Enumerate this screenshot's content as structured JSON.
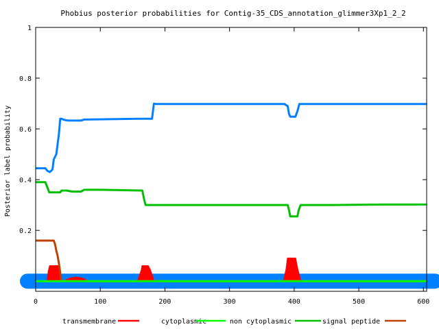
{
  "chart_data": {
    "type": "line",
    "title": "Phobius posterior probabilities for Contig-35_CDS_annotation_glimmer3Xp1_2_2",
    "xlabel": "",
    "ylabel": "Posterior label probability",
    "xlim": [
      0,
      605
    ],
    "ylim": [
      -0.04,
      1.0
    ],
    "x_ticks": [
      0,
      100,
      200,
      300,
      400,
      500,
      600
    ],
    "x_tick_labels": [
      "0",
      "100",
      "200",
      "300",
      "400",
      "500",
      "600"
    ],
    "y_ticks": [
      0.2,
      0.4,
      0.6,
      0.8,
      1.0
    ],
    "y_tick_labels": [
      "0.2",
      "0.4",
      "0.6",
      "0.8",
      "1"
    ],
    "grid": false,
    "legend_position": "bottom",
    "series": [
      {
        "name": "transmembrane",
        "color": "#ff0000",
        "style": "filled",
        "x": [
          0,
          18,
          20,
          22,
          34,
          36,
          38,
          45,
          50,
          55,
          60,
          65,
          70,
          75,
          80,
          85,
          158,
          164,
          165,
          174,
          177,
          183,
          384,
          388,
          390,
          402,
          405,
          410,
          605
        ],
        "y": [
          0,
          0,
          0.04,
          0.06,
          0.06,
          0.04,
          0,
          0,
          0.008,
          0.012,
          0.014,
          0.014,
          0.012,
          0.008,
          0,
          0,
          0,
          0.045,
          0.06,
          0.06,
          0.045,
          0,
          0,
          0.05,
          0.09,
          0.09,
          0.05,
          0,
          0
        ]
      },
      {
        "name": "cytoplasmic",
        "color": "#00ff00",
        "style": "line",
        "x": [
          0,
          605
        ],
        "y": [
          0,
          0
        ]
      },
      {
        "name": "non cytoplasmic",
        "color": "#00c000",
        "style": "line",
        "x": [
          0,
          15,
          18,
          21,
          38,
          40,
          48,
          56,
          70,
          75,
          100,
          165,
          168,
          170,
          390,
          392,
          394,
          405,
          407,
          410,
          460,
          540,
          605
        ],
        "y": [
          0.39,
          0.39,
          0.37,
          0.35,
          0.35,
          0.357,
          0.357,
          0.353,
          0.353,
          0.36,
          0.36,
          0.357,
          0.32,
          0.3,
          0.3,
          0.28,
          0.255,
          0.255,
          0.28,
          0.3,
          0.3,
          0.302,
          0.302
        ]
      },
      {
        "name": "signal peptide",
        "color": "#0080ff",
        "style": "line",
        "x": [
          0,
          15,
          18,
          22,
          26,
          28,
          32,
          36,
          38,
          40,
          44,
          50,
          70,
          75,
          160,
          172,
          180,
          183,
          186,
          385,
          390,
          392,
          394,
          402,
          405,
          408,
          605
        ],
        "y": [
          0.445,
          0.445,
          0.435,
          0.43,
          0.44,
          0.48,
          0.5,
          0.58,
          0.64,
          0.64,
          0.636,
          0.633,
          0.633,
          0.637,
          0.64,
          0.64,
          0.64,
          0.7,
          0.698,
          0.698,
          0.69,
          0.66,
          0.648,
          0.648,
          0.67,
          0.698,
          0.698
        ]
      },
      {
        "name": "signal peptide",
        "color": "#c04000",
        "style": "line",
        "x": [
          0,
          28,
          30,
          32,
          34,
          36,
          38,
          39,
          41,
          605
        ],
        "y": [
          0.16,
          0.16,
          0.145,
          0.12,
          0.1,
          0.07,
          0.035,
          0.01,
          0,
          0
        ]
      }
    ],
    "legend": [
      {
        "label": "transmembrane",
        "color": "#ff0000"
      },
      {
        "label": "cytoplasmic",
        "color": "#00ff00"
      },
      {
        "label": "non cytoplasmic",
        "color": "#00c000"
      },
      {
        "label": "signal peptide",
        "color": "#0080ff"
      },
      {
        "label": "",
        "color": "#c04000"
      }
    ]
  }
}
